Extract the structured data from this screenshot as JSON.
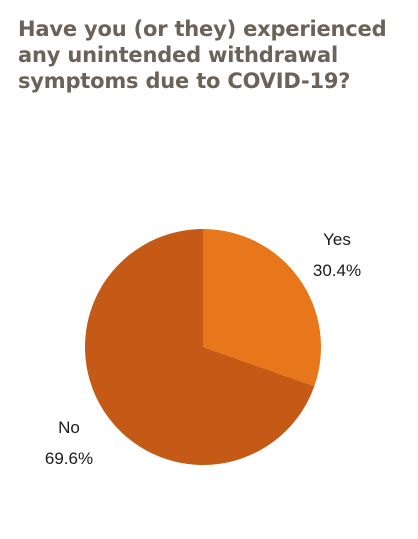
{
  "chart_data": {
    "type": "pie",
    "title": "Have you (or they) experienced any unintended withdrawal symptoms due to COVID-19?",
    "slices": [
      {
        "label": "Yes",
        "value": 30.4,
        "display": "30.4%",
        "color": "#e8761a"
      },
      {
        "label": "No",
        "value": 69.6,
        "display": "69.6%",
        "color": "#c55a16"
      }
    ],
    "start_angle_deg": 0,
    "direction": "clockwise",
    "legend": "none"
  }
}
